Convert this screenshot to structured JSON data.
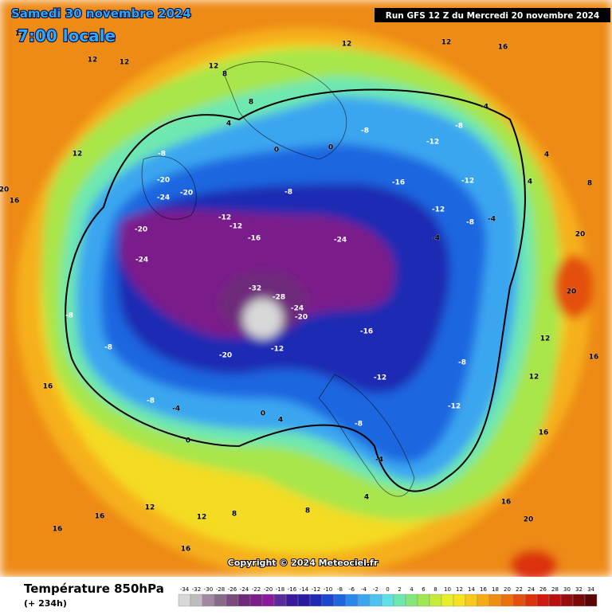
{
  "header": {
    "date": "Samedi 30 novembre 2024",
    "time": "7:00 locale",
    "run": "Run GFS 12 Z du Mercredi 20 novembre 2024"
  },
  "footer": {
    "title": "Température 850hPa",
    "lead": "(+ 234h)",
    "copyright": "Copyright © 2024 Meteociel.fr"
  },
  "colorbar": {
    "ticks": [
      -34,
      -32,
      -30,
      -28,
      -26,
      -24,
      -22,
      -20,
      -18,
      -16,
      -14,
      -12,
      -10,
      -8,
      -6,
      -4,
      -2,
      0,
      2,
      4,
      6,
      8,
      10,
      12,
      14,
      16,
      18,
      20,
      22,
      24,
      26,
      28,
      30,
      32,
      34
    ],
    "colors": [
      "#d8d8d8",
      "#bdbdbd",
      "#a089a0",
      "#8a6a8a",
      "#7a4c7e",
      "#6e2a7a",
      "#7a1f8a",
      "#8a1a9a",
      "#5a2a9a",
      "#3a1a9a",
      "#2a1aa0",
      "#1e2ab4",
      "#1a46d0",
      "#1e66e0",
      "#2a86e8",
      "#3aa6f0",
      "#4cc4f0",
      "#5ee0e6",
      "#6ee8b0",
      "#84e67a",
      "#a0e650",
      "#c4ea3a",
      "#e6ee2a",
      "#f6e21e",
      "#f8c81a",
      "#f6aa14",
      "#f08e10",
      "#ea700e",
      "#e4500c",
      "#dc320c",
      "#d0180c",
      "#b8100c",
      "#9a0c0c",
      "#7a0808",
      "#5a0404"
    ]
  },
  "map_labels": [
    -20,
    -24,
    -24,
    -16,
    -32,
    -28,
    -24,
    -20,
    -12,
    -20,
    -12,
    -16,
    -8,
    -8,
    -4,
    0,
    4,
    0,
    -8,
    -8,
    -12,
    -12,
    -8,
    -20,
    -24,
    -20,
    -16,
    -12,
    -12,
    -8,
    -4,
    -4,
    0,
    0,
    -4,
    -8,
    -12,
    4,
    4,
    8,
    12,
    12,
    16,
    16,
    20,
    20,
    16,
    20,
    16,
    16,
    12,
    16,
    12,
    8,
    12,
    16,
    12,
    12,
    12,
    16,
    20,
    16,
    12,
    8,
    4,
    8,
    -8,
    -8,
    -4,
    -12,
    -8,
    4,
    8,
    12,
    12
  ]
}
